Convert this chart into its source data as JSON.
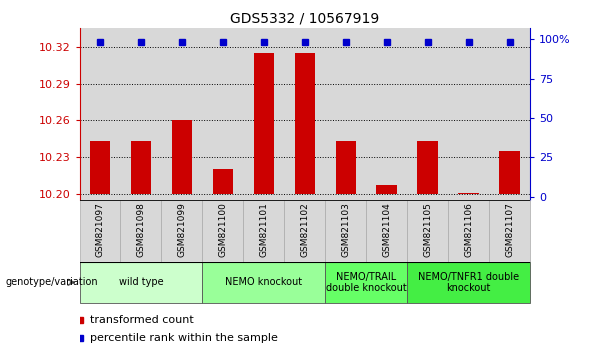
{
  "title": "GDS5332 / 10567919",
  "samples": [
    "GSM821097",
    "GSM821098",
    "GSM821099",
    "GSM821100",
    "GSM821101",
    "GSM821102",
    "GSM821103",
    "GSM821104",
    "GSM821105",
    "GSM821106",
    "GSM821107"
  ],
  "red_values": [
    10.243,
    10.243,
    10.26,
    10.22,
    10.315,
    10.315,
    10.243,
    10.207,
    10.243,
    10.201,
    10.235
  ],
  "blue_values": [
    98,
    98,
    98,
    98,
    98,
    98,
    98,
    98,
    98,
    98,
    98
  ],
  "ylim_left": [
    10.195,
    10.335
  ],
  "ylim_right": [
    -2,
    107
  ],
  "yticks_left": [
    10.2,
    10.23,
    10.26,
    10.29,
    10.32
  ],
  "yticks_right": [
    0,
    25,
    50,
    75,
    100
  ],
  "ytick_labels_right": [
    "0",
    "25",
    "50",
    "75",
    "100%"
  ],
  "bar_bottom": 10.2,
  "groups_info": [
    {
      "label": "wild type",
      "cols": [
        0,
        1,
        2
      ],
      "color": "#ccffcc"
    },
    {
      "label": "NEMO knockout",
      "cols": [
        3,
        4,
        5
      ],
      "color": "#99ff99"
    },
    {
      "label": "NEMO/TRAIL\ndouble knockout",
      "cols": [
        6,
        7
      ],
      "color": "#66ff66"
    },
    {
      "label": "NEMO/TNFR1 double\nknockout",
      "cols": [
        8,
        9,
        10
      ],
      "color": "#44ee44"
    }
  ],
  "red_color": "#cc0000",
  "blue_color": "#0000cc",
  "bar_width": 0.5,
  "col_bg_color": "#d8d8d8",
  "spine_color": "#888888"
}
